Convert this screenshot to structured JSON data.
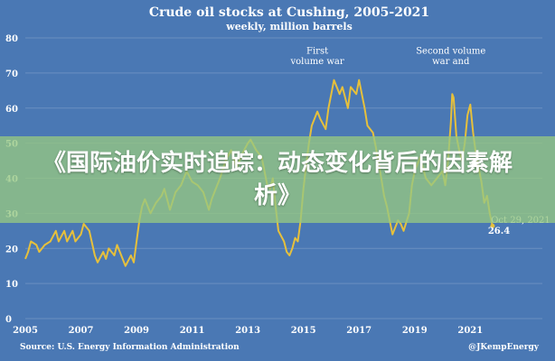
{
  "overlay": {
    "headline": "《国际油价实时追踪：动态变化背后的因素解析》"
  },
  "colors": {
    "background": "#4a78b4",
    "line": "#e6c03c",
    "text": "#ffffff",
    "banner": "#96c882"
  },
  "chart_data": {
    "type": "line",
    "title": "Crude oil stocks at Cushing, 2005-2021",
    "subtitle": "weekly, million barrels",
    "xlabel": "",
    "ylabel": "",
    "xlim": [
      2005.0,
      2021.9
    ],
    "ylim": [
      0,
      80
    ],
    "x_ticks": [
      "2005",
      "2007",
      "2009",
      "2011",
      "2013",
      "2015",
      "2017",
      "2019",
      "2021"
    ],
    "y_ticks": [
      "0",
      "10",
      "20",
      "30",
      "40",
      "50",
      "60",
      "70",
      "80"
    ],
    "grid": true,
    "source": "Source: U.S. Energy Information Administration",
    "credit": "@JKempEnergy",
    "annotations": [
      {
        "text": "First",
        "year": 2015.5,
        "value": 75.5
      },
      {
        "text": "volume war",
        "year": 2015.5,
        "value": 72.5
      },
      {
        "text": "Second volume",
        "year": 2020.3,
        "value": 75.5
      },
      {
        "text": "war and",
        "year": 2020.3,
        "value": 72.5
      }
    ],
    "end_label": {
      "date": "Oct 29, 2021",
      "value": "26.4"
    },
    "series": [
      {
        "x": [
          2005.0,
          2005.1,
          2005.2,
          2005.4,
          2005.5,
          2005.7,
          2005.9,
          2006.1,
          2006.2,
          2006.4,
          2006.5,
          2006.7,
          2006.8,
          2007.0,
          2007.1,
          2007.3,
          2007.5,
          2007.6,
          2007.8,
          2007.9,
          2008.0,
          2008.2,
          2008.3,
          2008.5,
          2008.6,
          2008.8,
          2008.9,
          2009.0,
          2009.1,
          2009.2,
          2009.3,
          2009.5,
          2009.7,
          2009.9,
          2010.0,
          2010.2,
          2010.4,
          2010.6,
          2010.8,
          2011.0,
          2011.2,
          2011.4,
          2011.6,
          2011.7,
          2011.8,
          2012.0,
          2012.2,
          2012.4,
          2012.6,
          2012.8,
          2013.0,
          2013.1,
          2013.3,
          2013.5,
          2013.6,
          2013.7,
          2013.8,
          2013.9,
          2014.0,
          2014.1,
          2014.3,
          2014.4,
          2014.5,
          2014.6,
          2014.7,
          2014.8,
          2014.9,
          2015.0,
          2015.1,
          2015.2,
          2015.3,
          2015.5,
          2015.6,
          2015.8,
          2015.9,
          2016.0,
          2016.1,
          2016.3,
          2016.4,
          2016.6,
          2016.7,
          2016.9,
          2017.0,
          2017.2,
          2017.3,
          2017.5,
          2017.6,
          2017.8,
          2017.9,
          2018.0,
          2018.1,
          2018.2,
          2018.4,
          2018.5,
          2018.6,
          2018.8,
          2018.9,
          2019.0,
          2019.2,
          2019.4,
          2019.6,
          2019.8,
          2020.0,
          2020.1,
          2020.2,
          2020.3,
          2020.35,
          2020.4,
          2020.5,
          2020.6,
          2020.7,
          2020.8,
          2020.9,
          2021.0,
          2021.1,
          2021.2,
          2021.3,
          2021.4,
          2021.5,
          2021.6,
          2021.7,
          2021.8
        ],
        "values": [
          17,
          19,
          22,
          21,
          19,
          21,
          22,
          25,
          22,
          25,
          22,
          25,
          22,
          24,
          27,
          25,
          18,
          16,
          19,
          17,
          20,
          18,
          21,
          17,
          15,
          18,
          16,
          22,
          28,
          32,
          34,
          30,
          33,
          35,
          37,
          31,
          36,
          38,
          42,
          39,
          38,
          36,
          31,
          34,
          36,
          40,
          45,
          48,
          43,
          47,
          50,
          51,
          48,
          46,
          42,
          38,
          37,
          40,
          32,
          25,
          22,
          19,
          18,
          20,
          23,
          22,
          28,
          37,
          44,
          50,
          55,
          59,
          57,
          54,
          60,
          64,
          68,
          64,
          66,
          60,
          66,
          64,
          68,
          60,
          55,
          53,
          49,
          40,
          35,
          32,
          28,
          24,
          28,
          27,
          25,
          30,
          38,
          42,
          46,
          40,
          38,
          40,
          42,
          38,
          45,
          56,
          64,
          63,
          52,
          48,
          45,
          50,
          58,
          61,
          53,
          47,
          43,
          39,
          33,
          35,
          30,
          26.4
        ]
      }
    ]
  }
}
